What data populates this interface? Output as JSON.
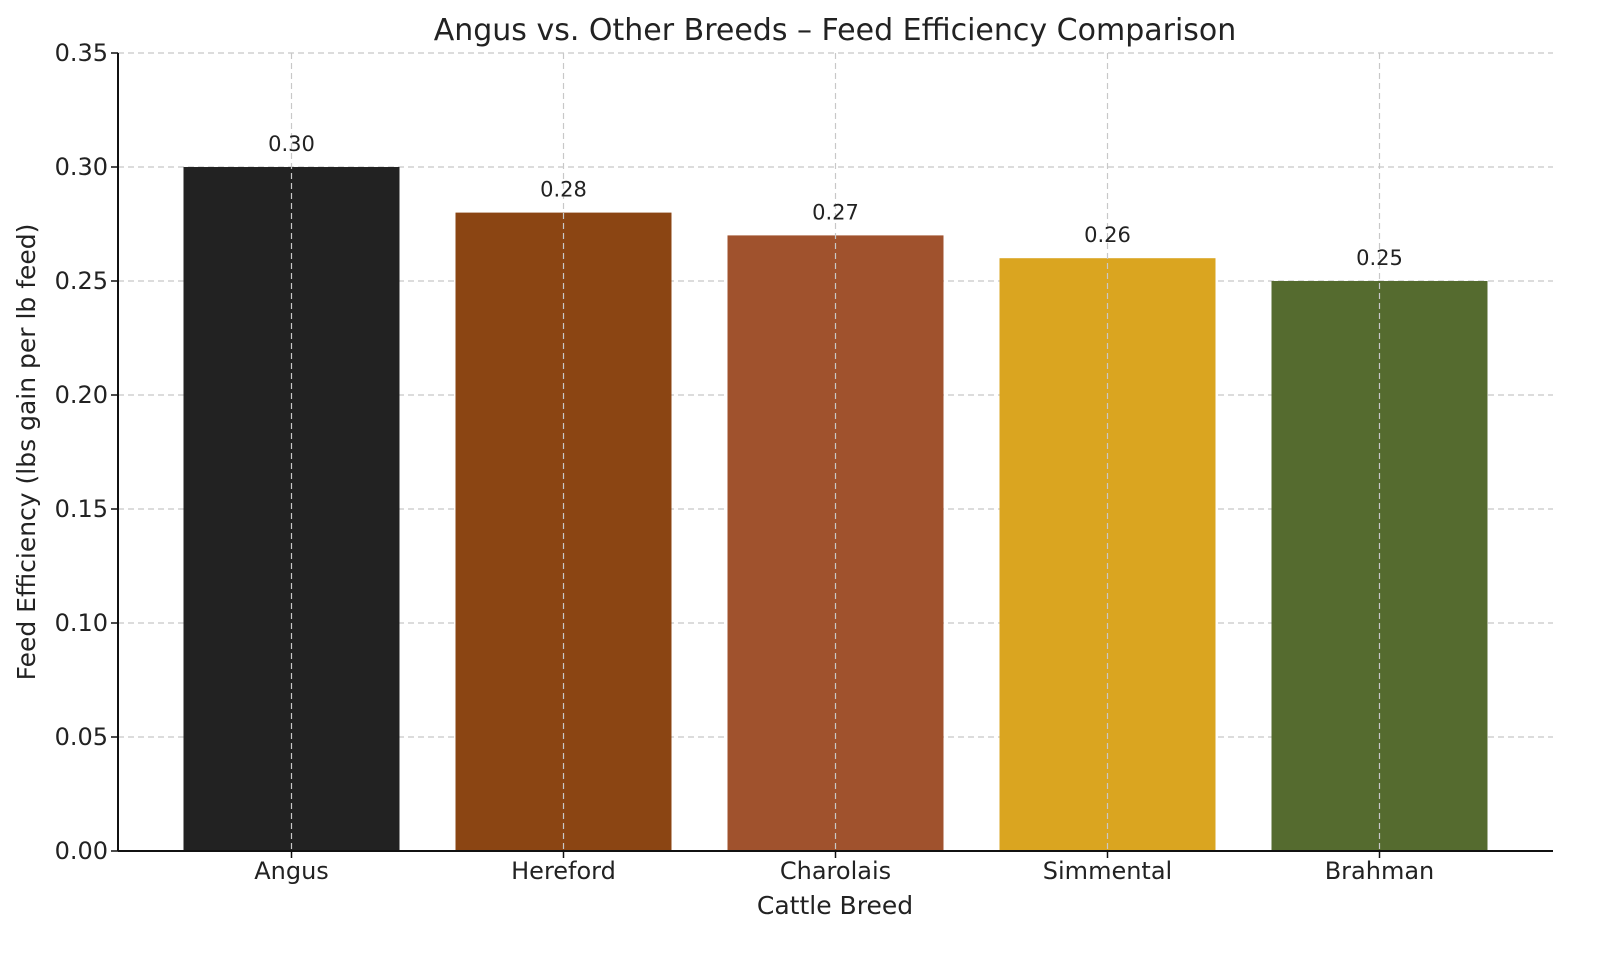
{
  "chart_data": {
    "type": "bar",
    "title": "Angus vs. Other Breeds – Feed Efficiency Comparison",
    "xlabel": "Cattle Breed",
    "ylabel": "Feed Efficiency (lbs gain per lb feed)",
    "categories": [
      "Angus",
      "Hereford",
      "Charolais",
      "Simmental",
      "Brahman"
    ],
    "values": [
      0.3,
      0.28,
      0.27,
      0.26,
      0.25
    ],
    "value_labels": [
      "0.30",
      "0.28",
      "0.27",
      "0.26",
      "0.25"
    ],
    "colors": [
      "#222222",
      "#8b4513",
      "#a0522d",
      "#daa520",
      "#556b2f"
    ],
    "ylim": [
      0,
      0.35
    ],
    "yticks": [
      0.0,
      0.05,
      0.1,
      0.15,
      0.2,
      0.25,
      0.3,
      0.35
    ],
    "ytick_labels": [
      "0.00",
      "0.05",
      "0.10",
      "0.15",
      "0.20",
      "0.25",
      "0.30",
      "0.35"
    ],
    "grid": true,
    "legend": "none"
  }
}
